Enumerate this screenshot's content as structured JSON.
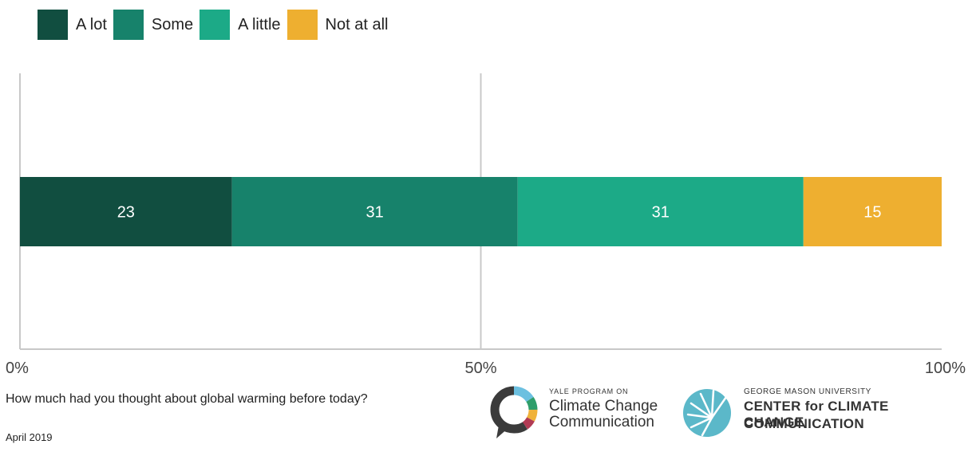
{
  "chart_data": {
    "type": "bar",
    "orientation": "horizontal",
    "stacked": true,
    "categories": [
      ""
    ],
    "series": [
      {
        "name": "A lot",
        "values": [
          23
        ],
        "color": "#114e40"
      },
      {
        "name": "Some",
        "values": [
          31
        ],
        "color": "#17826b"
      },
      {
        "name": "A little",
        "values": [
          31
        ],
        "color": "#1caa87"
      },
      {
        "name": "Not at all",
        "values": [
          15
        ],
        "color": "#eeaf30"
      }
    ],
    "xlim": [
      0,
      100
    ],
    "x_ticks": [
      "0%",
      "50%",
      "100%"
    ],
    "grid": true,
    "legend_position": "top-left"
  },
  "footer": {
    "question": "How much had you thought about global warming before today?",
    "date": "April 2019"
  },
  "logos": {
    "yale": {
      "small": "YALE PROGRAM ON",
      "line1": "Climate Change",
      "line2": "Communication"
    },
    "gmu": {
      "small": "GEORGE MASON UNIVERSITY",
      "line1": "CENTER for CLIMATE CHANGE",
      "line2": "COMMUNICATION"
    }
  }
}
